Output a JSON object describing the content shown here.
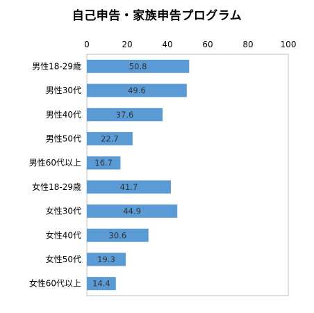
{
  "chart_data": {
    "type": "bar",
    "orientation": "horizontal",
    "title": "自己申告・家族申告プログラム",
    "categories": [
      "男性18-29歳",
      "男性30代",
      "男性40代",
      "男性50代",
      "男性60代以上",
      "女性18-29歳",
      "女性30代",
      "女性40代",
      "女性50代",
      "女性60代以上"
    ],
    "values": [
      50.8,
      49.6,
      37.6,
      22.7,
      16.7,
      41.7,
      44.9,
      30.6,
      19.3,
      14.4
    ],
    "data_labels": [
      "50.8",
      "49.6",
      "37.6",
      "22.7",
      "16.7",
      "41.7",
      "44.9",
      "30.6",
      "19.3",
      "14.4"
    ],
    "xlim": [
      0,
      100
    ],
    "x_ticks": [
      "0",
      "20",
      "40",
      "60",
      "80",
      "100"
    ],
    "x_axis_position": "top",
    "grid": false,
    "legend": "none",
    "bar_color": "#5B9BD5",
    "xlabel": "",
    "ylabel": ""
  }
}
